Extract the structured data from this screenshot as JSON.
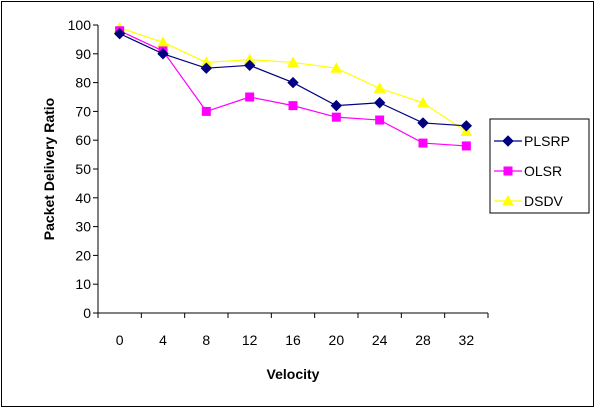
{
  "chart_data": {
    "type": "line",
    "title": "",
    "xlabel": "Velocity",
    "ylabel": "Packet Delivery Ratio",
    "x": [
      0,
      4,
      8,
      12,
      16,
      20,
      24,
      28,
      32
    ],
    "ylim": [
      0,
      100
    ],
    "yticks": [
      0,
      10,
      20,
      30,
      40,
      50,
      60,
      70,
      80,
      90,
      100
    ],
    "xtick_labels": [
      "0",
      "4",
      "8",
      "12",
      "16",
      "20",
      "24",
      "28",
      "32"
    ],
    "ytick_labels": [
      "0",
      "10",
      "20",
      "30",
      "40",
      "50",
      "60",
      "70",
      "80",
      "90",
      "100"
    ],
    "grid": false,
    "legend_position": "right",
    "series": [
      {
        "name": "PLSRP",
        "color": "#000080",
        "marker": "diamond",
        "values": [
          97,
          90,
          85,
          86,
          80,
          72,
          73,
          66,
          65
        ]
      },
      {
        "name": "OLSR",
        "color": "#FF00FF",
        "marker": "square",
        "values": [
          98,
          91,
          70,
          75,
          72,
          68,
          67,
          59,
          58
        ]
      },
      {
        "name": "DSDV",
        "color": "#FFFF00",
        "marker": "triangle",
        "values": [
          99,
          94,
          87,
          88,
          87,
          85,
          78,
          73,
          63
        ]
      }
    ]
  }
}
